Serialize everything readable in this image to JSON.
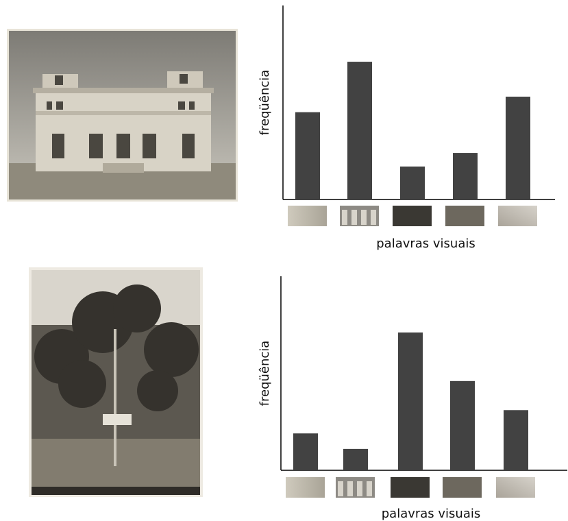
{
  "chart_data": [
    {
      "type": "bar",
      "x_label": "palavras visuais",
      "y_label": "freqüência",
      "categories": [
        null,
        null,
        null,
        null,
        null
      ],
      "values": [
        45,
        71,
        17,
        24,
        53
      ],
      "color": "#424242",
      "ylim": [
        0,
        100
      ]
    },
    {
      "type": "bar",
      "x_label": "palavras visuais",
      "y_label": "freqüência",
      "categories": [
        null,
        null,
        null,
        null,
        null
      ],
      "values": [
        19,
        11,
        71,
        46,
        31
      ],
      "color": "#424242",
      "ylim": [
        0,
        100
      ]
    }
  ]
}
